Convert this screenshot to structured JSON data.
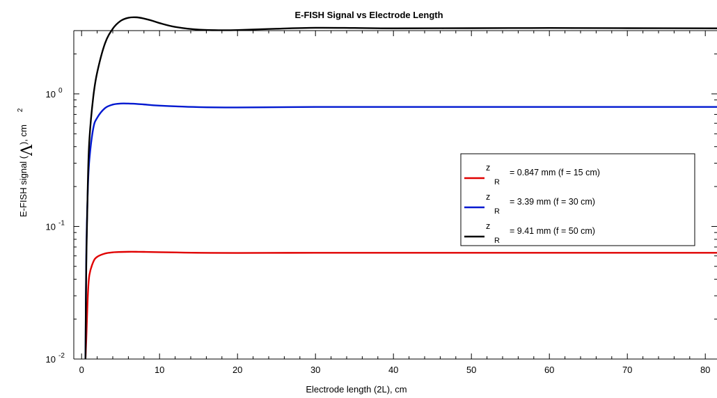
{
  "chart_data": {
    "type": "line",
    "title": "E-FISH Signal vs Electrode Length",
    "xlabel": "Electrode length (2L), cm",
    "ylabel": {
      "prefix": "E-FISH signal (",
      "symbol": "Λ",
      "suffix": "), cm",
      "superscript": "2"
    },
    "xlim": [
      -1,
      81.5
    ],
    "ylim": [
      0.01,
      3.0
    ],
    "yscale": "log",
    "xticks": [
      0,
      10,
      20,
      30,
      40,
      50,
      60,
      70,
      80
    ],
    "yticks": [
      {
        "value": 0.01,
        "base": "10",
        "exponent": "-2"
      },
      {
        "value": 0.1,
        "base": "10",
        "exponent": "-1"
      },
      {
        "value": 1,
        "base": "10",
        "exponent": "0"
      }
    ],
    "legend_position": "center-right",
    "series": [
      {
        "label_var": "z",
        "label_sub": "R",
        "label_text": "= 0.847 mm (f = 15 cm)",
        "color": "#e00000",
        "x": [
          0.5,
          0.6,
          0.8,
          1.0,
          1.5,
          2,
          3,
          4,
          5,
          6,
          7,
          8,
          10,
          15,
          20,
          30,
          40,
          50,
          60,
          70,
          81.5
        ],
        "y": [
          0.005,
          0.014,
          0.03,
          0.043,
          0.054,
          0.059,
          0.0625,
          0.0638,
          0.0642,
          0.0644,
          0.0644,
          0.0643,
          0.064,
          0.0633,
          0.0631,
          0.0633,
          0.0633,
          0.0633,
          0.0633,
          0.0633,
          0.0633
        ]
      },
      {
        "label_var": "z",
        "label_sub": "R",
        "label_text": "= 3.39 mm   (f = 30 cm)",
        "color": "#0018d0",
        "x": [
          0.5,
          0.6,
          0.8,
          1.0,
          1.5,
          2,
          3,
          4,
          5,
          6,
          7,
          8,
          10,
          15,
          20,
          30,
          40,
          50,
          60,
          70,
          81.5
        ],
        "y": [
          0.005,
          0.06,
          0.19,
          0.32,
          0.55,
          0.66,
          0.78,
          0.83,
          0.845,
          0.845,
          0.84,
          0.832,
          0.815,
          0.795,
          0.79,
          0.797,
          0.797,
          0.797,
          0.797,
          0.797,
          0.797
        ]
      },
      {
        "label_var": "z",
        "label_sub": "R",
        "label_text": "= 9.41 mm   (f = 50 cm)",
        "color": "#000000",
        "x": [
          0.5,
          0.6,
          0.8,
          1.0,
          1.5,
          2,
          3,
          4,
          5,
          6,
          7,
          8,
          9,
          10,
          12,
          15,
          18,
          20,
          25,
          30,
          35,
          40,
          50,
          60,
          70,
          81.5
        ],
        "y": [
          0.005,
          0.05,
          0.21,
          0.45,
          0.95,
          1.45,
          2.4,
          3.1,
          3.55,
          3.75,
          3.78,
          3.7,
          3.57,
          3.42,
          3.2,
          3.05,
          3.02,
          3.03,
          3.1,
          3.15,
          3.14,
          3.12,
          3.13,
          3.14,
          3.13,
          3.12
        ]
      }
    ]
  }
}
